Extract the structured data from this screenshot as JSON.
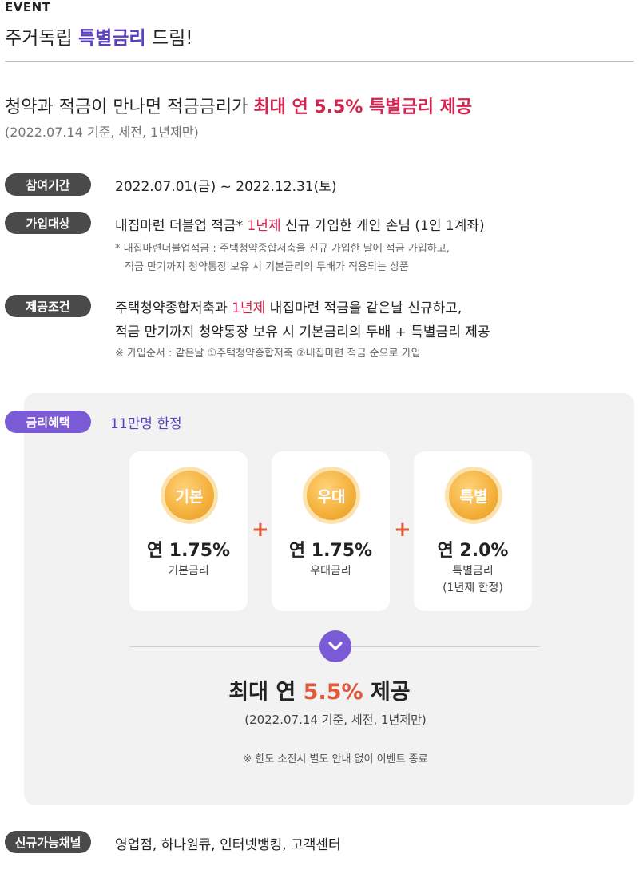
{
  "header": {
    "event_tag": "EVENT",
    "title_pre": "주거독립 ",
    "title_highlight": "특별금리",
    "title_post": " 드림!"
  },
  "headline": {
    "text_pre": "청약과 적금이 만나면 적금금리가 ",
    "text_accent": "최대 연 5.5% 특별금리 제공",
    "sub": "(2022.07.14 기준, 세전, 1년제만)"
  },
  "period": {
    "label": "참여기간",
    "value": "2022.07.01(금) ~ 2022.12.31(토)"
  },
  "target": {
    "label": "가입대상",
    "text_pre": "내집마련 더블업 적금* ",
    "text_red": "1년제",
    "text_post": " 신규 가입한 개인 손님 (1인 1계좌)",
    "note_line1": "* 내집마련더블업적금 : 주택청약종합저축을 신규 가입한 날에 적금 가입하고,",
    "note_line2": "적금 만기까지 청약통장 보유 시 기본금리의 두배가 적용되는 상품"
  },
  "condition": {
    "label": "제공조건",
    "line1_pre": "주택청약종합저축과 ",
    "line1_red": "1년제",
    "line1_post": " 내집마련 적금을 같은날 신규하고,",
    "line2": "적금 만기까지 청약통장 보유 시 기본금리의 두배 + 특별금리 제공",
    "note": "※ 가입순서 : 같은날 ①주택청약종합저축 ②내집마련 적금 순으로 가입"
  },
  "benefit": {
    "label": "금리혜택",
    "limit": "11만명 한정",
    "cards": [
      {
        "badge": "기본",
        "rate": "연 1.75%",
        "name": "기본금리",
        "note": ""
      },
      {
        "badge": "우대",
        "rate": "연 1.75%",
        "name": "우대금리",
        "note": ""
      },
      {
        "badge": "특별",
        "rate": "연 2.0%",
        "name": "특별금리",
        "note": "(1년제 한정)"
      }
    ],
    "plus_symbol": "+",
    "max_pre": "최대 연 ",
    "max_value": "5.5%",
    "max_post": " 제공",
    "max_sub": "(2022.07.14 기준, 세전, 1년제만)",
    "notice": "※ 한도 소진시 별도 안내 없이 이벤트 종료"
  },
  "channel": {
    "label": "신규가능채널",
    "value": "영업점, 하나원큐, 인터넷뱅킹, 고객센터"
  },
  "colors": {
    "purple": "#5a3fc0",
    "red": "#d6244f",
    "orange": "#e2583a",
    "coin": "#f5b23f"
  }
}
